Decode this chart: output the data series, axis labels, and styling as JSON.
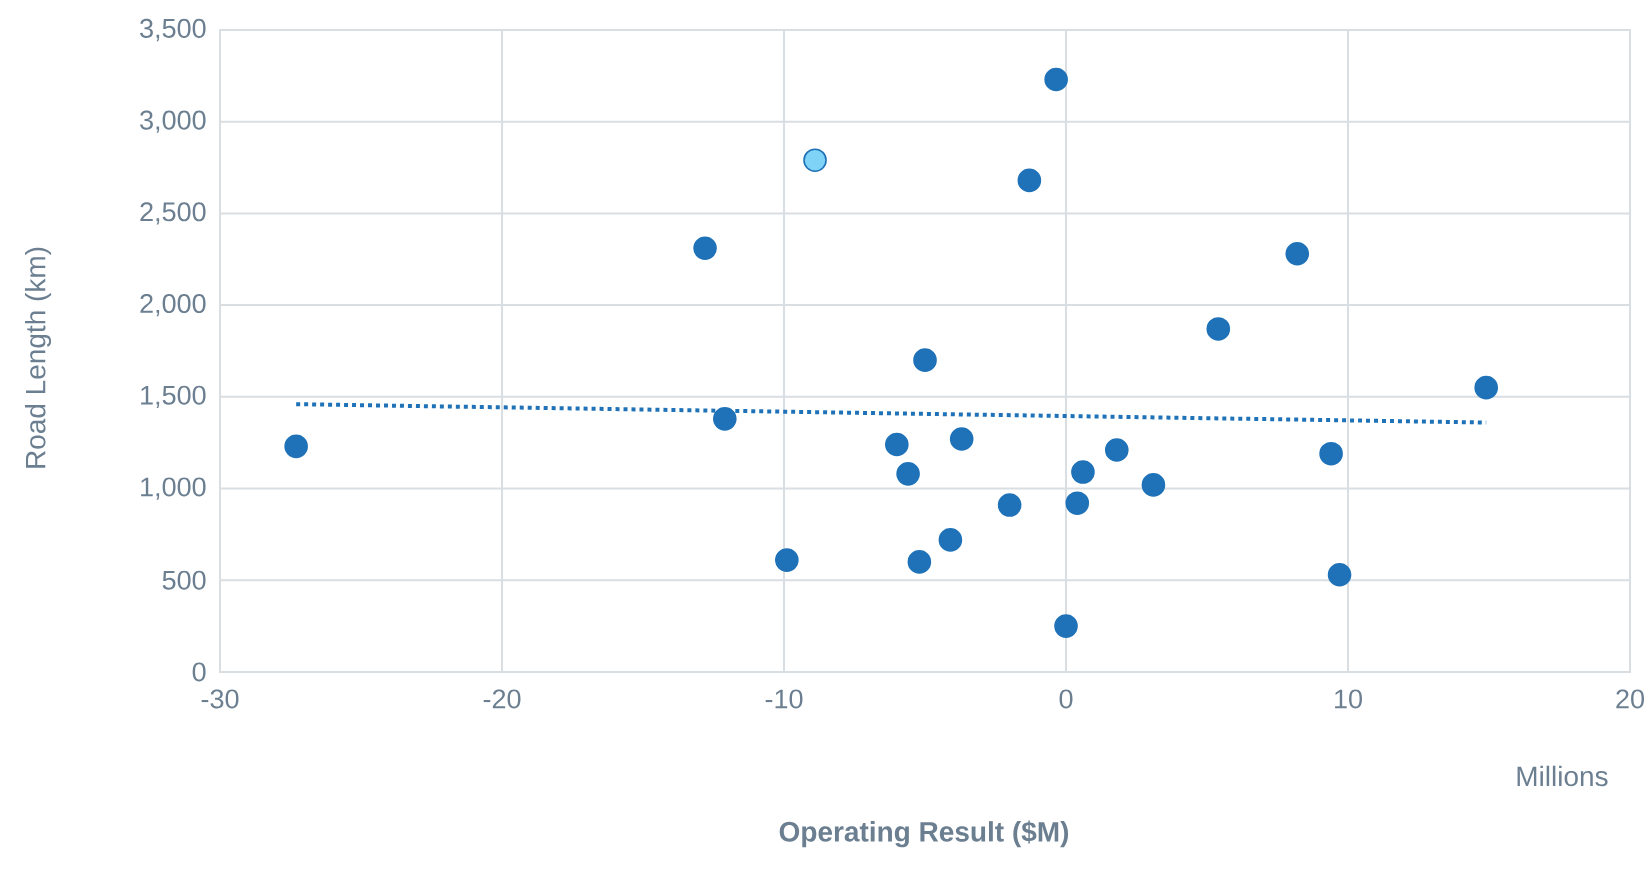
{
  "chart_data": {
    "type": "scatter",
    "xlabel": "Operating Result ($M)",
    "ylabel": "Road Length (km)",
    "annotations": [
      "Millions"
    ],
    "xlim": [
      -30,
      20
    ],
    "xticks": [
      -30,
      -20,
      -10,
      0,
      10,
      20
    ],
    "ylim": [
      0,
      3500
    ],
    "yticks": [
      0,
      500,
      {
        "value": 1000,
        "label": "1,000"
      },
      {
        "value": 1500,
        "label": "1,500"
      },
      {
        "value": 2000,
        "label": "2,000"
      },
      {
        "value": 2500,
        "label": "2,500"
      },
      {
        "value": 3000,
        "label": "3,000"
      },
      {
        "value": 3500,
        "label": "3,500"
      }
    ],
    "grid": true,
    "series": [
      {
        "color": "#1f72b8",
        "marker": "circle",
        "x": [
          -27.3,
          -12.8,
          -12.1,
          -9.9,
          -5.0,
          -6.0,
          -5.6,
          -5.2,
          -3.7,
          -4.1,
          -2.0,
          -0.35,
          -1.3,
          0.0,
          0.6,
          0.4,
          1.8,
          3.1,
          5.4,
          8.2,
          9.4,
          9.7,
          14.9
        ],
        "values": [
          1230,
          2310,
          1380,
          610,
          1700,
          1240,
          1080,
          600,
          1270,
          720,
          910,
          3230,
          2680,
          250,
          1090,
          920,
          1210,
          1020,
          1870,
          2280,
          1190,
          530,
          1550
        ]
      },
      {
        "color": "#7fd3f7",
        "marker": "circle",
        "x": [
          -8.9
        ],
        "values": [
          2790
        ]
      },
      {
        "type": "line",
        "line_style": "dotted",
        "marker": "none",
        "color": "#1f72b8",
        "x": [
          -27.3,
          14.9
        ],
        "values": [
          1460,
          1360
        ]
      }
    ]
  }
}
